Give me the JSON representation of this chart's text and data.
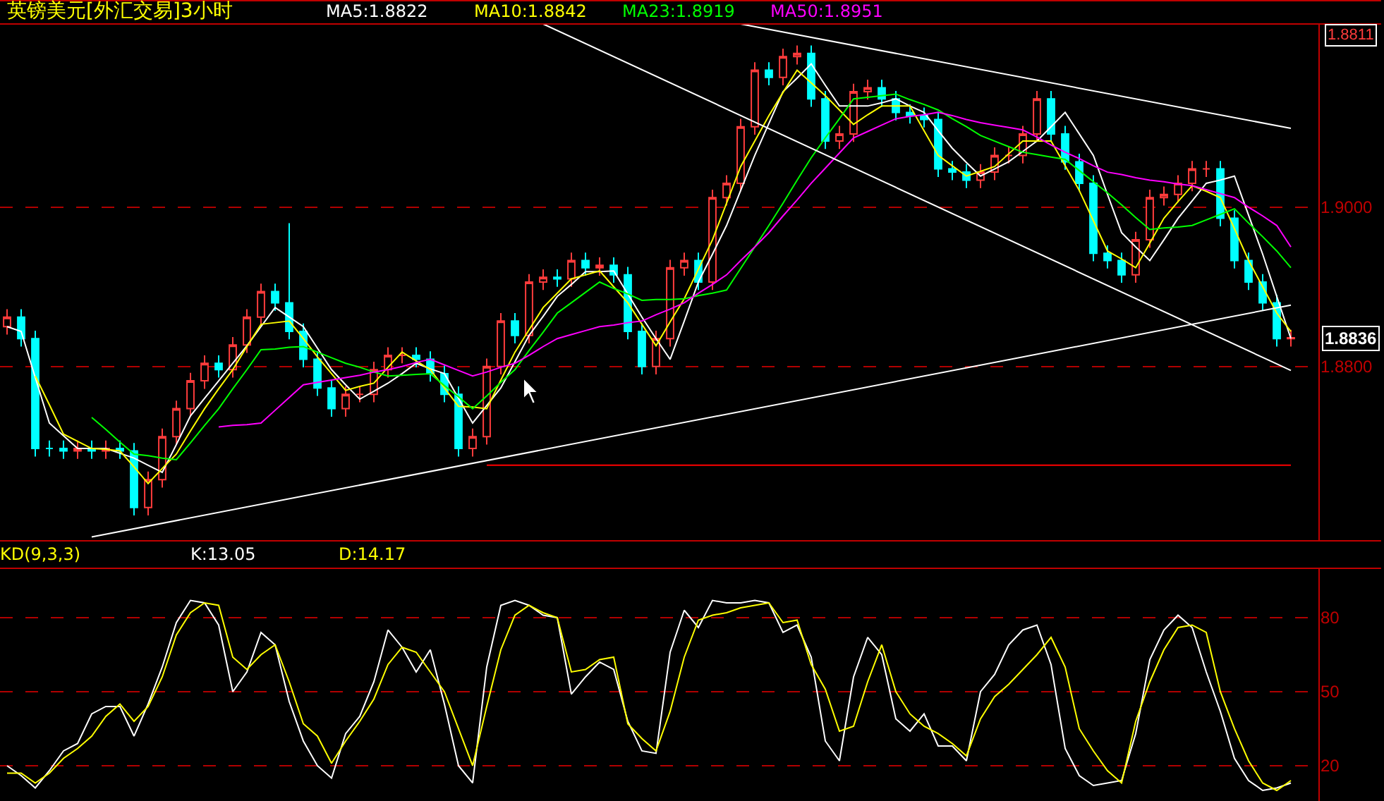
{
  "chart_data": [
    {
      "type": "candlestick",
      "title": "英镑美元[外汇交易]3小时",
      "legend": "top",
      "grid": "y",
      "tick_labels": "y",
      "categories": [
        null,
        null,
        null,
        null,
        null,
        null,
        null,
        null,
        null,
        null,
        null,
        null,
        null,
        null,
        null,
        null,
        null,
        null,
        null,
        null,
        null,
        null,
        null,
        null,
        null,
        null,
        null,
        null,
        null,
        null,
        null,
        null,
        null,
        null,
        null,
        null,
        null,
        null,
        null,
        null,
        null,
        null,
        null,
        null,
        null,
        null,
        null,
        null,
        null,
        null,
        null,
        null,
        null,
        null,
        null,
        null,
        null,
        null,
        null,
        null,
        null,
        null,
        null,
        null,
        null,
        null,
        null,
        null,
        null,
        null,
        null,
        null,
        null,
        null,
        null,
        null,
        null,
        null,
        null,
        null,
        null,
        null,
        null,
        null,
        null,
        null,
        null,
        null,
        null,
        null,
        null,
        null
      ],
      "ohlc": [
        [
          1.885,
          1.8872,
          1.884,
          1.8862
        ],
        [
          1.8862,
          1.8872,
          1.8825,
          1.8835
        ],
        [
          1.8835,
          1.8845,
          1.8687,
          1.8697
        ],
        [
          1.8697,
          1.8707,
          1.8687,
          1.8697
        ],
        [
          1.8697,
          1.8707,
          1.8684,
          1.8694
        ],
        [
          1.8694,
          1.8707,
          1.8684,
          1.8697
        ],
        [
          1.8697,
          1.8707,
          1.8684,
          1.8694
        ],
        [
          1.8694,
          1.8707,
          1.8684,
          1.8697
        ],
        [
          1.8697,
          1.8707,
          1.8684,
          1.8694
        ],
        [
          1.8694,
          1.8704,
          1.8613,
          1.8623
        ],
        [
          1.8623,
          1.8668,
          1.8613,
          1.8658
        ],
        [
          1.8658,
          1.8722,
          1.8648,
          1.8712
        ],
        [
          1.8712,
          1.8757,
          1.8702,
          1.8747
        ],
        [
          1.8747,
          1.8792,
          1.8737,
          1.8782
        ],
        [
          1.8782,
          1.8814,
          1.8772,
          1.8804
        ],
        [
          1.8804,
          1.8814,
          1.8786,
          1.8796
        ],
        [
          1.8796,
          1.8837,
          1.8786,
          1.8827
        ],
        [
          1.8827,
          1.8872,
          1.8817,
          1.8862
        ],
        [
          1.8862,
          1.8904,
          1.8852,
          1.8894
        ],
        [
          1.8894,
          1.8904,
          1.887,
          1.888
        ],
        [
          1.888,
          1.898,
          1.8834,
          1.8844
        ],
        [
          1.8844,
          1.8854,
          1.8799,
          1.8809
        ],
        [
          1.8809,
          1.8819,
          1.8763,
          1.8773
        ],
        [
          1.8773,
          1.8783,
          1.8737,
          1.8747
        ],
        [
          1.8747,
          1.8775,
          1.8737,
          1.8765
        ],
        [
          1.8765,
          1.8775,
          1.8755,
          1.8765
        ],
        [
          1.8765,
          1.8806,
          1.8755,
          1.8796
        ],
        [
          1.8796,
          1.8824,
          1.8786,
          1.8814
        ],
        [
          1.8814,
          1.8824,
          1.8804,
          1.8814
        ],
        [
          1.8814,
          1.8824,
          1.8799,
          1.8809
        ],
        [
          1.8809,
          1.8819,
          1.8781,
          1.8791
        ],
        [
          1.8791,
          1.8801,
          1.8755,
          1.8765
        ],
        [
          1.8765,
          1.8775,
          1.8687,
          1.8697
        ],
        [
          1.8697,
          1.8722,
          1.8687,
          1.8712
        ],
        [
          1.8712,
          1.881,
          1.8702,
          1.88
        ],
        [
          1.88,
          1.8867,
          1.879,
          1.8857
        ],
        [
          1.8857,
          1.8867,
          1.8829,
          1.8839
        ],
        [
          1.8839,
          1.8916,
          1.8829,
          1.8906
        ],
        [
          1.8906,
          1.8922,
          1.8896,
          1.8912
        ],
        [
          1.8912,
          1.8922,
          1.89,
          1.891
        ],
        [
          1.891,
          1.8943,
          1.89,
          1.8933
        ],
        [
          1.8933,
          1.8943,
          1.8914,
          1.8924
        ],
        [
          1.8924,
          1.8937,
          1.8914,
          1.8927
        ],
        [
          1.8927,
          1.8937,
          1.8905,
          1.8915
        ],
        [
          1.8915,
          1.8925,
          1.8834,
          1.8844
        ],
        [
          1.8844,
          1.8854,
          1.879,
          1.88
        ],
        [
          1.88,
          1.8845,
          1.879,
          1.8835
        ],
        [
          1.8835,
          1.8934,
          1.8825,
          1.8924
        ],
        [
          1.8924,
          1.8943,
          1.8914,
          1.8933
        ],
        [
          1.8933,
          1.8943,
          1.8896,
          1.8906
        ],
        [
          1.8906,
          1.9022,
          1.8896,
          1.9012
        ],
        [
          1.9012,
          1.904,
          1.9002,
          1.903
        ],
        [
          1.903,
          1.9111,
          1.902,
          1.9101
        ],
        [
          1.9101,
          1.9182,
          1.9091,
          1.9172
        ],
        [
          1.9172,
          1.9182,
          1.9153,
          1.9163
        ],
        [
          1.9163,
          1.9199,
          1.9153,
          1.9189
        ],
        [
          1.9189,
          1.9203,
          1.9179,
          1.9193
        ],
        [
          1.9193,
          1.9203,
          1.9126,
          1.9136
        ],
        [
          1.9136,
          1.9146,
          1.9073,
          1.9083
        ],
        [
          1.9083,
          1.9102,
          1.9073,
          1.9092
        ],
        [
          1.9092,
          1.9155,
          1.9082,
          1.9145
        ],
        [
          1.9145,
          1.916,
          1.9135,
          1.915
        ],
        [
          1.915,
          1.916,
          1.9126,
          1.9136
        ],
        [
          1.9136,
          1.9146,
          1.9109,
          1.9119
        ],
        [
          1.9119,
          1.9129,
          1.9105,
          1.9115
        ],
        [
          1.9115,
          1.9125,
          1.91,
          1.911
        ],
        [
          1.911,
          1.912,
          1.9038,
          1.9048
        ],
        [
          1.9048,
          1.9058,
          1.9034,
          1.9044
        ],
        [
          1.9044,
          1.9054,
          1.9024,
          1.9034
        ],
        [
          1.9034,
          1.9054,
          1.9024,
          1.9044
        ],
        [
          1.9044,
          1.9075,
          1.9034,
          1.9065
        ],
        [
          1.9065,
          1.9075,
          1.9055,
          1.9065
        ],
        [
          1.9065,
          1.9102,
          1.9055,
          1.9092
        ],
        [
          1.9092,
          1.9146,
          1.9082,
          1.9136
        ],
        [
          1.9136,
          1.9146,
          1.9082,
          1.9092
        ],
        [
          1.9092,
          1.9102,
          1.9047,
          1.9057
        ],
        [
          1.9057,
          1.9067,
          1.902,
          1.903
        ],
        [
          1.903,
          1.904,
          1.8932,
          1.8942
        ],
        [
          1.8942,
          1.8952,
          1.8923,
          1.8933
        ],
        [
          1.8933,
          1.8943,
          1.8905,
          1.8915
        ],
        [
          1.8915,
          1.8969,
          1.8905,
          1.8959
        ],
        [
          1.8959,
          1.9022,
          1.8949,
          1.9012
        ],
        [
          1.9012,
          1.9026,
          1.9002,
          1.9016
        ],
        [
          1.9016,
          1.904,
          1.9006,
          1.903
        ],
        [
          1.903,
          1.9058,
          1.902,
          1.9048
        ],
        [
          1.9048,
          1.9058,
          1.9038,
          1.9048
        ],
        [
          1.9048,
          1.9058,
          1.8976,
          1.8986
        ],
        [
          1.8986,
          1.8996,
          1.8923,
          1.8933
        ],
        [
          1.8933,
          1.8943,
          1.8896,
          1.8906
        ],
        [
          1.8906,
          1.8916,
          1.887,
          1.888
        ],
        [
          1.888,
          1.889,
          1.8825,
          1.8835
        ],
        [
          1.8835,
          1.8846,
          1.8825,
          1.8836
        ]
      ],
      "series": [
        {
          "type": "line",
          "name": "MA5:1.8822",
          "color": "#ffffff",
          "values": [
            1.885,
            1.8844,
            1.8786,
            1.8729,
            1.8713,
            1.8697,
            1.8697,
            1.8697,
            1.8691,
            1.8685,
            1.8676,
            1.8667,
            1.8702,
            1.8738,
            1.876,
            1.8782,
            1.8804,
            1.8826,
            1.885,
            1.8874,
            1.8862,
            1.885,
            1.8823,
            1.8796,
            1.8777,
            1.8759,
            1.8769,
            1.8779,
            1.8791,
            1.8804,
            1.8797,
            1.8791,
            1.876,
            1.8729,
            1.8751,
            1.8773,
            1.8806,
            1.8839,
            1.8863,
            1.8888,
            1.8903,
            1.8919,
            1.8919,
            1.892,
            1.8891,
            1.8862,
            1.8835,
            1.8809,
            1.8857,
            1.8906,
            1.8941,
            1.8977,
            1.9021,
            1.9065,
            1.9105,
            1.9145,
            1.9162,
            1.918,
            1.9153,
            1.9127,
            1.9127,
            1.9127,
            1.9131,
            1.9136,
            1.9127,
            1.9119,
            1.9096,
            1.9074,
            1.9056,
            1.9039,
            1.9048,
            1.9057,
            1.907,
            1.9083,
            1.9101,
            1.9119,
            1.9092,
            1.9065,
            1.9016,
            1.8968,
            1.895,
            1.8933,
            1.8959,
            1.8986,
            1.9008,
            1.903,
            1.9034,
            1.9039,
            1.899,
            1.8941,
            1.8888,
            1.8835
          ]
        },
        {
          "type": "line",
          "name": "MA10:1.8842",
          "color": "#ffff00",
          "values": [
            null,
            null,
            1.8788,
            1.8752,
            1.8715,
            1.8706,
            1.8697,
            1.8696,
            1.8694,
            1.8674,
            1.8653,
            1.8672,
            1.869,
            1.8719,
            1.8747,
            1.8772,
            1.8796,
            1.8825,
            1.8853,
            1.8855,
            1.8857,
            1.8835,
            1.8812,
            1.8791,
            1.877,
            1.8775,
            1.8779,
            1.8799,
            1.8818,
            1.8807,
            1.8796,
            1.8773,
            1.875,
            1.8749,
            1.8747,
            1.8783,
            1.8818,
            1.8846,
            1.8874,
            1.8892,
            1.891,
            1.8915,
            1.892,
            1.89,
            1.888,
            1.8853,
            1.8826,
            1.8856,
            1.8885,
            1.8922,
            1.8959,
            1.9005,
            1.9051,
            1.9083,
            1.9115,
            1.9144,
            1.9172,
            1.9156,
            1.914,
            1.9122,
            1.9104,
            1.9116,
            1.9127,
            1.9127,
            1.9127,
            1.9096,
            1.9065,
            1.9052,
            1.9039,
            1.9045,
            1.9051,
            1.9067,
            1.9083,
            1.9083,
            1.9083,
            1.9052,
            1.9021,
            1.8983,
            1.8945,
            1.8935,
            1.8924,
            1.8955,
            1.8986,
            1.9007,
            1.9027,
            1.902,
            1.9012,
            1.8973,
            1.8933,
            1.89,
            1.8867,
            1.8844
          ]
        },
        {
          "type": "line",
          "name": "MA23:1.8919",
          "color": "#00ff00",
          "values": [
            null,
            null,
            null,
            null,
            null,
            null,
            1.8736,
            1.8721,
            1.8705,
            1.869,
            1.8688,
            1.8685,
            1.8683,
            1.8704,
            1.8726,
            1.8747,
            1.8772,
            1.8796,
            1.8821,
            1.8822,
            1.8824,
            1.8825,
            1.8818,
            1.8811,
            1.8804,
            1.8799,
            1.8793,
            1.8788,
            1.8789,
            1.879,
            1.8791,
            1.8776,
            1.8762,
            1.8747,
            1.8763,
            1.878,
            1.8796,
            1.882,
            1.8843,
            1.8867,
            1.888,
            1.8893,
            1.8906,
            1.8898,
            1.8891,
            1.8883,
            1.8884,
            1.8884,
            1.8885,
            1.8889,
            1.8892,
            1.8896,
            1.8923,
            1.895,
            1.8977,
            1.9005,
            1.9034,
            1.9062,
            1.9087,
            1.9111,
            1.9136,
            1.9138,
            1.914,
            1.9142,
            1.9135,
            1.9129,
            1.9122,
            1.9111,
            1.9101,
            1.909,
            1.9083,
            1.9076,
            1.9069,
            1.9066,
            1.9063,
            1.906,
            1.9046,
            1.9032,
            1.9018,
            1.9003,
            1.8987,
            1.8972,
            1.8974,
            1.8975,
            1.8977,
            1.8984,
            1.8991,
            1.8998,
            1.898,
            1.8963,
            1.8945,
            1.8924
          ]
        },
        {
          "type": "line",
          "name": "MA50:1.8951",
          "color": "#ff00ff",
          "values": [
            null,
            null,
            null,
            null,
            null,
            null,
            null,
            null,
            null,
            null,
            null,
            null,
            null,
            null,
            null,
            1.8724,
            1.8726,
            1.8727,
            1.8729,
            1.8745,
            1.8761,
            1.8777,
            1.878,
            1.8783,
            1.8786,
            1.8789,
            1.8793,
            1.8796,
            1.88,
            1.8805,
            1.8809,
            1.8802,
            1.8795,
            1.8788,
            1.8793,
            1.8799,
            1.8804,
            1.8814,
            1.8825,
            1.8835,
            1.884,
            1.8845,
            1.885,
            1.8852,
            1.8855,
            1.8857,
            1.8865,
            1.8872,
            1.888,
            1.8892,
            1.8903,
            1.8915,
            1.8933,
            1.895,
            1.8968,
            1.8989,
            1.9009,
            1.903,
            1.9049,
            1.9068,
            1.9087,
            1.9095,
            1.9103,
            1.9111,
            1.9114,
            1.9116,
            1.9119,
            1.9115,
            1.911,
            1.9106,
            1.9103,
            1.91,
            1.9097,
            1.9088,
            1.9078,
            1.9069,
            1.9061,
            1.9052,
            1.9044,
            1.9041,
            1.9037,
            1.9034,
            1.9032,
            1.9029,
            1.9027,
            1.9022,
            1.9017,
            1.9012,
            1.9,
            1.8989,
            1.8977,
            1.895
          ]
        },
        {
          "type": "line",
          "color": "#ffffff",
          "values": [
            null,
            null,
            null,
            null,
            null,
            null,
            1.8586,
            null,
            null,
            null,
            null,
            null,
            null,
            null,
            null,
            null,
            null,
            null,
            null,
            null,
            null,
            null,
            null,
            null,
            null,
            null,
            null,
            null,
            null,
            null,
            null,
            null,
            null,
            null,
            null,
            null,
            null,
            null,
            null,
            null,
            null,
            null,
            null,
            null,
            null,
            null,
            null,
            null,
            null,
            null,
            null,
            null,
            null,
            null,
            null,
            null,
            null,
            null,
            null,
            null,
            null,
            null,
            null,
            null,
            null,
            null,
            null,
            null,
            null,
            null,
            null,
            null,
            null,
            null,
            null,
            null,
            null,
            null,
            null,
            null,
            null,
            null,
            null,
            null,
            null,
            null,
            null,
            null,
            null,
            null,
            null,
            1.8877
          ]
        },
        {
          "type": "line",
          "color": "#ffffff",
          "values": [
            null,
            null,
            null,
            null,
            null,
            null,
            null,
            null,
            null,
            null,
            null,
            null,
            null,
            null,
            null,
            null,
            null,
            null,
            null,
            null,
            null,
            null,
            null,
            null,
            null,
            null,
            null,
            null,
            null,
            null,
            null,
            null,
            null,
            null,
            null,
            null,
            null,
            null,
            1.923,
            null,
            null,
            null,
            null,
            null,
            null,
            null,
            null,
            null,
            null,
            null,
            null,
            null,
            null,
            null,
            null,
            null,
            null,
            null,
            null,
            null,
            null,
            null,
            null,
            null,
            null,
            null,
            null,
            null,
            null,
            null,
            null,
            null,
            null,
            null,
            null,
            null,
            null,
            null,
            null,
            null,
            null,
            null,
            null,
            null,
            null,
            null,
            null,
            null,
            null,
            null,
            null,
            1.8795
          ]
        },
        {
          "type": "line",
          "color": "#ffffff",
          "values": [
            null,
            null,
            null,
            null,
            null,
            null,
            null,
            null,
            null,
            null,
            null,
            null,
            null,
            null,
            null,
            null,
            null,
            null,
            null,
            null,
            null,
            null,
            null,
            null,
            null,
            null,
            null,
            null,
            null,
            null,
            null,
            null,
            null,
            null,
            null,
            null,
            null,
            null,
            null,
            null,
            null,
            null,
            null,
            null,
            null,
            null,
            null,
            null,
            null,
            null,
            null,
            null,
            1.923,
            null,
            null,
            null,
            null,
            null,
            null,
            null,
            null,
            null,
            null,
            null,
            null,
            null,
            null,
            null,
            null,
            null,
            null,
            null,
            null,
            null,
            null,
            null,
            null,
            null,
            null,
            null,
            null,
            null,
            null,
            null,
            null,
            null,
            null,
            null,
            null,
            null,
            null,
            1.9099
          ]
        },
        {
          "type": "line",
          "color": "#ff0000",
          "values": [
            null,
            null,
            null,
            null,
            null,
            null,
            null,
            null,
            null,
            null,
            null,
            null,
            null,
            null,
            null,
            null,
            null,
            null,
            null,
            null,
            null,
            null,
            null,
            null,
            null,
            null,
            null,
            null,
            null,
            null,
            null,
            null,
            null,
            null,
            1.8676,
            null,
            null,
            null,
            null,
            null,
            null,
            null,
            null,
            null,
            null,
            null,
            null,
            null,
            null,
            null,
            null,
            null,
            null,
            null,
            null,
            null,
            null,
            null,
            null,
            null,
            null,
            null,
            null,
            null,
            null,
            null,
            null,
            null,
            null,
            null,
            null,
            null,
            null,
            null,
            null,
            null,
            null,
            null,
            null,
            null,
            null,
            null,
            null,
            null,
            null,
            null,
            null,
            null,
            null,
            null,
            null,
            1.8676
          ]
        }
      ],
      "ylim": [
        1.8582,
        1.923
      ],
      "yticks": [
        {
          "value": 1.9,
          "label": "1.9000"
        },
        {
          "value": 1.88,
          "label": "1.8800"
        }
      ],
      "annotations": [
        "1.8811",
        "1.8836"
      ]
    },
    {
      "type": "line",
      "title": "KD(9,3,3)",
      "legend": "top",
      "grid": "y",
      "tick_labels": "y",
      "categories": [
        null,
        null,
        null,
        null,
        null,
        null,
        null,
        null,
        null,
        null,
        null,
        null,
        null,
        null,
        null,
        null,
        null,
        null,
        null,
        null,
        null,
        null,
        null,
        null,
        null,
        null,
        null,
        null,
        null,
        null,
        null,
        null,
        null,
        null,
        null,
        null,
        null,
        null,
        null,
        null,
        null,
        null,
        null,
        null,
        null,
        null,
        null,
        null,
        null,
        null,
        null,
        null,
        null,
        null,
        null,
        null,
        null,
        null,
        null,
        null,
        null,
        null,
        null,
        null,
        null,
        null,
        null,
        null,
        null,
        null,
        null,
        null,
        null,
        null,
        null,
        null,
        null,
        null,
        null,
        null,
        null,
        null,
        null,
        null,
        null,
        null,
        null,
        null,
        null,
        null,
        null,
        null
      ],
      "series": [
        {
          "name": "K:13.05",
          "color": "#ffffff",
          "values": [
            20,
            16,
            11,
            18,
            26,
            29,
            41,
            44,
            44,
            32,
            45,
            60,
            78,
            87,
            86,
            77,
            50,
            58,
            74,
            69,
            46,
            30,
            20,
            15,
            33,
            40,
            54,
            75,
            68,
            58,
            67,
            45,
            20,
            13,
            60,
            85,
            87,
            85,
            81,
            80,
            49,
            56,
            62,
            59,
            38,
            26,
            25,
            66,
            83,
            76,
            87,
            86,
            86,
            87,
            86,
            74,
            77,
            64,
            30,
            22,
            56,
            72,
            65,
            39,
            34,
            41,
            28,
            28,
            22,
            50,
            57,
            69,
            75,
            77,
            61,
            27,
            16,
            12,
            13,
            14,
            33,
            63,
            75,
            81,
            76,
            58,
            42,
            23,
            14,
            10,
            11,
            13
          ]
        },
        {
          "name": "D:14.17",
          "color": "#ffff00",
          "values": [
            17,
            17,
            13,
            17,
            23,
            27,
            32,
            40,
            45,
            38,
            44,
            56,
            73,
            82,
            86,
            85,
            64,
            59,
            65,
            69,
            54,
            37,
            32,
            21,
            30,
            38,
            47,
            61,
            68,
            66,
            58,
            50,
            35,
            20,
            44,
            67,
            81,
            85,
            82,
            80,
            58,
            59,
            63,
            64,
            37,
            31,
            26,
            42,
            64,
            79,
            81,
            82,
            84,
            85,
            86,
            78,
            79,
            61,
            51,
            34,
            36,
            54,
            69,
            50,
            41,
            36,
            33,
            29,
            24,
            39,
            48,
            53,
            59,
            65,
            72,
            60,
            35,
            26,
            18,
            13,
            38,
            54,
            67,
            76,
            77,
            74,
            50,
            35,
            22,
            13,
            10,
            14
          ]
        }
      ],
      "ylim": [
        5.7,
        100
      ],
      "yticks": [
        20,
        50,
        80
      ]
    }
  ]
}
